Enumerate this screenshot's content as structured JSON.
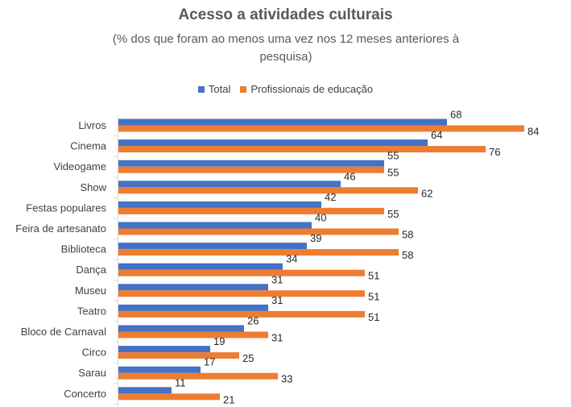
{
  "chart_data": {
    "type": "bar",
    "orientation": "horizontal",
    "title": "Acesso a atividades culturais",
    "subtitle": "(% dos que foram ao menos uma vez nos 12 meses anteriores à pesquisa)",
    "categories": [
      "Livros",
      "Cinema",
      "Videogame",
      "Show",
      "Festas populares",
      "Feira de artesanato",
      "Biblioteca",
      "Dança",
      "Museu",
      "Teatro",
      "Bloco de Carnaval",
      "Circo",
      "Sarau",
      "Concerto"
    ],
    "series": [
      {
        "name": "Total",
        "color": "#4472C4",
        "values": [
          68,
          64,
          55,
          46,
          42,
          40,
          39,
          34,
          31,
          31,
          26,
          19,
          17,
          11
        ]
      },
      {
        "name": "Profissionais de educação",
        "color": "#ED7D31",
        "values": [
          84,
          76,
          55,
          62,
          55,
          58,
          58,
          51,
          51,
          51,
          31,
          25,
          33,
          21
        ]
      }
    ],
    "xlim": [
      0,
      100
    ],
    "grid": false,
    "data_labels": true,
    "legend_position": "top"
  }
}
